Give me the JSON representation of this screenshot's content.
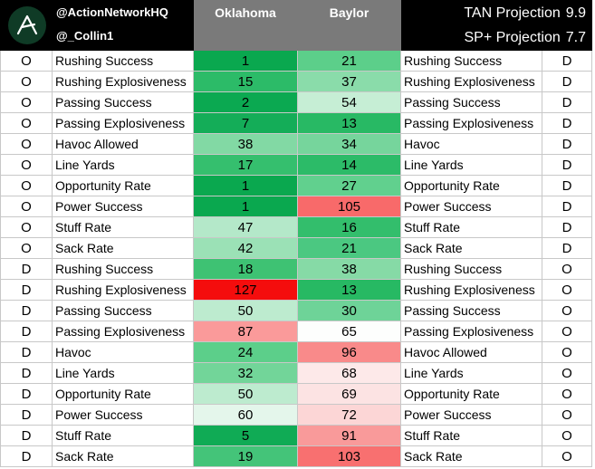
{
  "header": {
    "handle_1": "@ActionNetworkHQ",
    "handle_2": "@_Collin1",
    "team_a": "Oklahoma",
    "team_b": "Baylor",
    "tan_label": "TAN Projection",
    "tan_value": "9.9",
    "sp_label": "SP+ Projection",
    "sp_value": "7.7"
  },
  "rows": [
    {
      "a_side": "O",
      "a_stat": "Rushing Success",
      "a_rank": "1",
      "b_rank": "21",
      "b_stat": "Rushing Success",
      "b_side": "D",
      "a_color": "#0aa84f",
      "b_color": "#5ccf8a"
    },
    {
      "a_side": "O",
      "a_stat": "Rushing Explosiveness",
      "a_rank": "15",
      "b_rank": "37",
      "b_stat": "Rushing Explosiveness",
      "b_side": "D",
      "a_color": "#2cbb68",
      "b_color": "#8adcaa"
    },
    {
      "a_side": "O",
      "a_stat": "Passing Success",
      "a_rank": "2",
      "b_rank": "54",
      "b_stat": "Passing Success",
      "b_side": "D",
      "a_color": "#0ba951",
      "b_color": "#c6eed5"
    },
    {
      "a_side": "O",
      "a_stat": "Passing Explosiveness",
      "a_rank": "7",
      "b_rank": "13",
      "b_stat": "Passing Explosiveness",
      "b_side": "D",
      "a_color": "#14ad58",
      "b_color": "#28b964"
    },
    {
      "a_side": "O",
      "a_stat": "Havoc Allowed",
      "a_rank": "38",
      "b_rank": "34",
      "b_stat": "Havoc",
      "b_side": "D",
      "a_color": "#82d9a4",
      "b_color": "#76d59c"
    },
    {
      "a_side": "O",
      "a_stat": "Line Yards",
      "a_rank": "17",
      "b_rank": "14",
      "b_stat": "Line Yards",
      "b_side": "D",
      "a_color": "#35bf6e",
      "b_color": "#2cbb68"
    },
    {
      "a_side": "O",
      "a_stat": "Opportunity Rate",
      "a_rank": "1",
      "b_rank": "27",
      "b_stat": "Opportunity Rate",
      "b_side": "D",
      "a_color": "#0aa84f",
      "b_color": "#61d08e"
    },
    {
      "a_side": "O",
      "a_stat": "Power Success",
      "a_rank": "1",
      "b_rank": "105",
      "b_stat": "Power Success",
      "b_side": "D",
      "a_color": "#0aa84f",
      "b_color": "#f86a6a"
    },
    {
      "a_side": "O",
      "a_stat": "Stuff Rate",
      "a_rank": "47",
      "b_rank": "16",
      "b_stat": "Stuff Rate",
      "b_side": "D",
      "a_color": "#b4e8c9",
      "b_color": "#33be6c"
    },
    {
      "a_side": "O",
      "a_stat": "Sack Rate",
      "a_rank": "42",
      "b_rank": "21",
      "b_stat": "Sack Rate",
      "b_side": "D",
      "a_color": "#9be1b6",
      "b_color": "#4bc881"
    },
    {
      "a_side": "D",
      "a_stat": "Rushing Success",
      "a_rank": "18",
      "b_rank": "38",
      "b_stat": "Rushing Success",
      "b_side": "O",
      "a_color": "#3ec273",
      "b_color": "#86daa6"
    },
    {
      "a_side": "D",
      "a_stat": "Rushing Explosiveness",
      "a_rank": "127",
      "b_rank": "13",
      "b_stat": "Rushing Explosiveness",
      "b_side": "O",
      "a_color": "#f40d0d",
      "b_color": "#27b963"
    },
    {
      "a_side": "D",
      "a_stat": "Passing Success",
      "a_rank": "50",
      "b_rank": "30",
      "b_stat": "Passing Success",
      "b_side": "O",
      "a_color": "#bdebcf",
      "b_color": "#6ed398"
    },
    {
      "a_side": "D",
      "a_stat": "Passing Explosiveness",
      "a_rank": "87",
      "b_rank": "65",
      "b_stat": "Passing Explosiveness",
      "b_side": "O",
      "a_color": "#fa9a9a",
      "b_color": "#fdfefd"
    },
    {
      "a_side": "D",
      "a_stat": "Havoc",
      "a_rank": "24",
      "b_rank": "96",
      "b_stat": "Havoc Allowed",
      "b_side": "O",
      "a_color": "#5ccf8a",
      "b_color": "#f98a8a"
    },
    {
      "a_side": "D",
      "a_stat": "Line Yards",
      "a_rank": "32",
      "b_rank": "68",
      "b_stat": "Line Yards",
      "b_side": "O",
      "a_color": "#72d599",
      "b_color": "#fde9e9"
    },
    {
      "a_side": "D",
      "a_stat": "Opportunity Rate",
      "a_rank": "50",
      "b_rank": "69",
      "b_stat": "Opportunity Rate",
      "b_side": "O",
      "a_color": "#bdebcf",
      "b_color": "#fce3e3"
    },
    {
      "a_side": "D",
      "a_stat": "Power Success",
      "a_rank": "60",
      "b_rank": "72",
      "b_stat": "Power Success",
      "b_side": "O",
      "a_color": "#e4f6eb",
      "b_color": "#fcd6d6"
    },
    {
      "a_side": "D",
      "a_stat": "Stuff Rate",
      "a_rank": "5",
      "b_rank": "91",
      "b_stat": "Stuff Rate",
      "b_side": "O",
      "a_color": "#10ab55",
      "b_color": "#f99a9a"
    },
    {
      "a_side": "D",
      "a_stat": "Sack Rate",
      "a_rank": "19",
      "b_rank": "103",
      "b_stat": "Sack Rate",
      "b_side": "O",
      "a_color": "#44c479",
      "b_color": "#f87070"
    }
  ]
}
